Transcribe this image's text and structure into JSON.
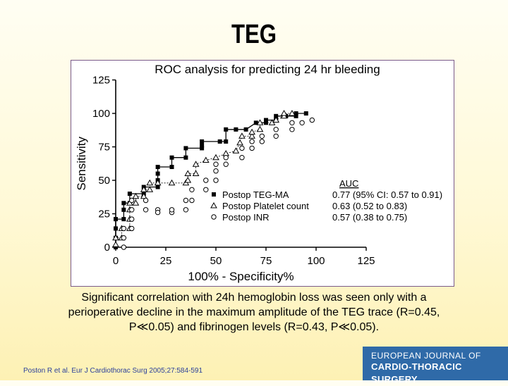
{
  "slide": {
    "title": "TEG",
    "caption_lines": [
      "Significant correlation with 24h hemoglobin loss was seen only with a",
      "perioperative decline in the maximum amplitude of the TEG trace (R=0.45,",
      "P≪0.05) and fibrinogen levels (R=0.43, P≪0.05)."
    ],
    "citation": "Poston R et al. Eur J Cardiothorac Surg 2005;27:584-591",
    "journal_logo": {
      "line1": "EUROPEAN JOURNAL OF",
      "line2": "CARDIO-THORACIC SURGERY"
    }
  },
  "colors": {
    "background": "#fff9d6",
    "frame": "#7a5a8a",
    "logo": "#2f6aa8",
    "citation": "#2a3f9a"
  },
  "chart_data": {
    "type": "line",
    "title": "ROC analysis for predicting 24 hr bleeding",
    "xlabel": "100% - Specificity%",
    "ylabel": "Sensitivity",
    "xlim": [
      0,
      125
    ],
    "ylim": [
      0,
      125
    ],
    "xticks": [
      0,
      25,
      50,
      75,
      100,
      125
    ],
    "yticks": [
      0,
      25,
      50,
      75,
      100,
      125
    ],
    "legend": {
      "placement": "right",
      "auc_header": "AUC"
    },
    "series": [
      {
        "name": "Postop TEG-MA",
        "marker": "filled-square",
        "auc": "0.77 (95% CI: 0.57 to 0.91)",
        "points": [
          [
            0,
            0
          ],
          [
            0,
            7
          ],
          [
            0,
            14
          ],
          [
            0,
            21
          ],
          [
            4,
            21
          ],
          [
            4,
            28
          ],
          [
            4,
            33
          ],
          [
            7,
            33
          ],
          [
            7,
            40
          ],
          [
            14,
            40
          ],
          [
            14,
            45
          ],
          [
            21,
            45
          ],
          [
            21,
            50
          ],
          [
            21,
            55
          ],
          [
            21,
            60
          ],
          [
            28,
            60
          ],
          [
            28,
            67
          ],
          [
            35,
            67
          ],
          [
            35,
            74
          ],
          [
            43,
            74
          ],
          [
            43,
            76
          ],
          [
            43,
            79
          ],
          [
            52,
            79
          ],
          [
            55,
            79
          ],
          [
            55,
            88
          ],
          [
            60,
            88
          ],
          [
            65,
            88
          ],
          [
            70,
            93
          ],
          [
            75,
            93
          ],
          [
            75,
            95
          ],
          [
            80,
            95
          ],
          [
            80,
            98
          ],
          [
            85,
            98
          ],
          [
            90,
            98
          ],
          [
            90,
            100
          ],
          [
            95,
            100
          ]
        ]
      },
      {
        "name": "Postop Platelet count",
        "marker": "open-triangle",
        "auc": "0.63 (0.52 to 0.83)",
        "points": [
          [
            0,
            2
          ],
          [
            0,
            7
          ],
          [
            3,
            7
          ],
          [
            3,
            14
          ],
          [
            7,
            14
          ],
          [
            7,
            21
          ],
          [
            7,
            28
          ],
          [
            7,
            33
          ],
          [
            10,
            33
          ],
          [
            10,
            38
          ],
          [
            14,
            38
          ],
          [
            14,
            43
          ],
          [
            17,
            43
          ],
          [
            17,
            48
          ],
          [
            21,
            48
          ],
          [
            28,
            48
          ],
          [
            35,
            48
          ],
          [
            36,
            50
          ],
          [
            36,
            55
          ],
          [
            40,
            55
          ],
          [
            40,
            62
          ],
          [
            45,
            65
          ],
          [
            50,
            67
          ],
          [
            55,
            70
          ],
          [
            60,
            72
          ],
          [
            62,
            78
          ],
          [
            63,
            83
          ],
          [
            68,
            83
          ],
          [
            68,
            86
          ],
          [
            72,
            88
          ],
          [
            72,
            93
          ],
          [
            78,
            93
          ],
          [
            80,
            95
          ],
          [
            84,
            98
          ],
          [
            84,
            100
          ],
          [
            88,
            100
          ]
        ]
      },
      {
        "name": "Postop INR",
        "marker": "open-circle",
        "auc": "0.57 (0.38 to 0.75)",
        "points": [
          [
            4,
            0
          ],
          [
            4,
            7
          ],
          [
            4,
            14
          ],
          [
            8,
            14
          ],
          [
            8,
            21
          ],
          [
            8,
            28
          ],
          [
            8,
            35
          ],
          [
            15,
            35
          ],
          [
            15,
            28
          ],
          [
            21,
            28
          ],
          [
            21,
            26
          ],
          [
            28,
            26
          ],
          [
            28,
            28
          ],
          [
            35,
            28
          ],
          [
            35,
            35
          ],
          [
            38,
            35
          ],
          [
            38,
            43
          ],
          [
            45,
            43
          ],
          [
            45,
            50
          ],
          [
            50,
            50
          ],
          [
            50,
            57
          ],
          [
            50,
            62
          ],
          [
            55,
            62
          ],
          [
            55,
            67
          ],
          [
            63,
            67
          ],
          [
            63,
            74
          ],
          [
            68,
            74
          ],
          [
            68,
            79
          ],
          [
            73,
            79
          ],
          [
            73,
            83
          ],
          [
            80,
            83
          ],
          [
            80,
            88
          ],
          [
            88,
            88
          ],
          [
            88,
            93
          ],
          [
            93,
            93
          ],
          [
            98,
            95
          ]
        ]
      }
    ]
  }
}
